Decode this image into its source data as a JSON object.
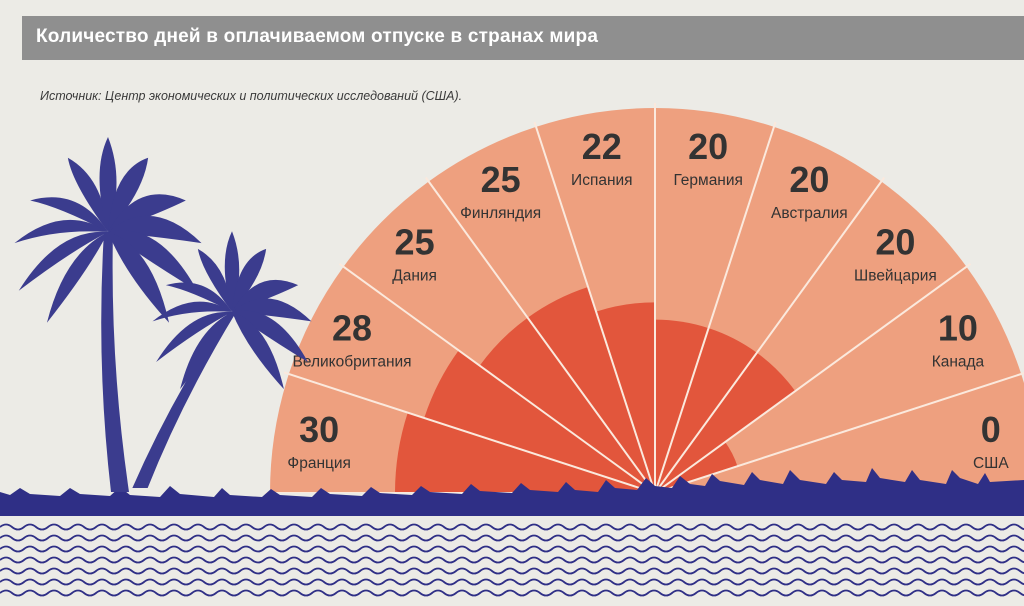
{
  "header": {
    "title": "Количество дней в оплачиваемом отпуске в странах мира",
    "source": "Источник: Центр экономических и политических исследований (США)."
  },
  "colors": {
    "outer_wedge": "#eea07f",
    "inner_wedge": "#e2563c",
    "divider": "#fbe9dd",
    "ground": "#2f2f86",
    "palm": "#3b3c8e",
    "header_bar": "#8f8f8f"
  },
  "icons": [
    "palm-tree-icon",
    "palm-tree-icon",
    "sea-waves-icon"
  ],
  "chart_data": {
    "type": "radial-bar",
    "title": "Количество дней в оплачиваемом отпуске в странах мира",
    "categories": [
      "Франция",
      "Великобритания",
      "Дания",
      "Финляндия",
      "Испания",
      "Германия",
      "Австралия",
      "Швейцария",
      "Канада",
      "США"
    ],
    "values": [
      30,
      28,
      25,
      25,
      22,
      20,
      20,
      20,
      10,
      0
    ],
    "value_labels": [
      "30",
      "28",
      "25",
      "25",
      "22",
      "20",
      "20",
      "20",
      "10",
      "0"
    ],
    "xlabel": "",
    "ylabel": "",
    "ylim": [
      0,
      30
    ],
    "grid": false,
    "legend": "none"
  }
}
